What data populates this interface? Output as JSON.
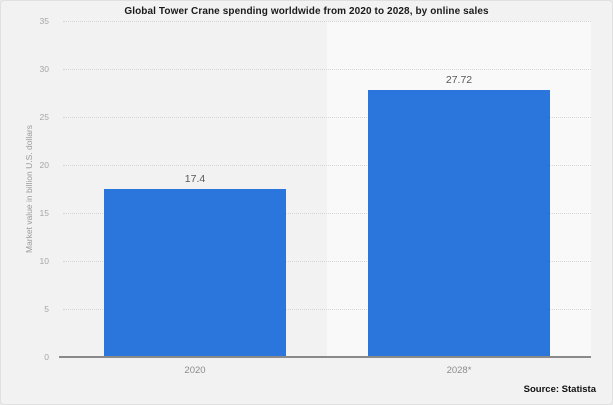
{
  "page": {
    "title": "Global Tower Crane spending worldwide from 2020 to 2028, by online sales",
    "source": "Source: Statista"
  },
  "chart_data": {
    "type": "bar",
    "title": "Global Tower Crane spending worldwide from 2020 to 2028, by online sales",
    "categories": [
      "2020",
      "2028*"
    ],
    "values": [
      17.4,
      27.72
    ],
    "value_labels": [
      "17.4",
      "27.72"
    ],
    "xlabel": "",
    "ylabel": "Market value in billion U.S. dollars",
    "ylim": [
      0,
      35
    ],
    "yticks": [
      0,
      5,
      10,
      15,
      20,
      25,
      30,
      35
    ],
    "grid": true,
    "legend": false,
    "bar_color": "#2b76dd",
    "background_color": "#f2f2f2",
    "highlight_band_category": "2028*",
    "highlight_band_color": "#f9f9f9",
    "source": "Source: Statista"
  }
}
